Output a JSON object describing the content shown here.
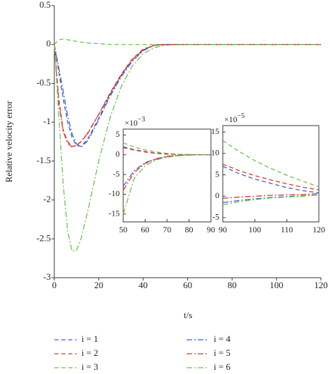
{
  "chart_data": [
    {
      "type": "line",
      "xlabel": "t/s",
      "ylabel": "Relative velocity error",
      "x": [
        0,
        2,
        4,
        6,
        8,
        10,
        12,
        15,
        20,
        25,
        30,
        35,
        40,
        45,
        50,
        60,
        70,
        80,
        100,
        120
      ],
      "xlim": [
        0,
        120
      ],
      "ylim": [
        -3,
        0.5
      ],
      "xticks": [
        0,
        20,
        40,
        60,
        80,
        100,
        120
      ],
      "yticks": [
        0.5,
        0,
        -0.5,
        -1,
        -1.5,
        -2,
        -2.5,
        -3
      ],
      "box": false,
      "legend": "bottom",
      "series": [
        {
          "name": "i = 1",
          "color": "#3b5fc9",
          "dash": "dashed",
          "values": [
            0,
            -0.35,
            -0.7,
            -1.0,
            -1.2,
            -1.3,
            -1.31,
            -1.22,
            -0.95,
            -0.65,
            -0.4,
            -0.2,
            -0.07,
            -0.01,
            0,
            0,
            0,
            0,
            0,
            0
          ]
        },
        {
          "name": "i = 2",
          "color": "#e0302a",
          "dash": "dashed",
          "values": [
            0,
            -0.7,
            -1.1,
            -1.25,
            -1.31,
            -1.3,
            -1.25,
            -1.15,
            -0.9,
            -0.63,
            -0.39,
            -0.19,
            -0.06,
            -0.01,
            0,
            0,
            0,
            0,
            0,
            0
          ]
        },
        {
          "name": "i = 3",
          "color": "#6cc04a",
          "dash": "dashed",
          "values": [
            0,
            0.06,
            0.07,
            0.06,
            0.05,
            0.04,
            0.03,
            0.02,
            0.01,
            0,
            0,
            0,
            0,
            0,
            0,
            0,
            0,
            0,
            0,
            0
          ]
        },
        {
          "name": "i = 4",
          "color": "#3b5fc9",
          "dash": "dashdot",
          "values": [
            0,
            -0.3,
            -0.6,
            -0.92,
            -1.15,
            -1.28,
            -1.32,
            -1.24,
            -0.97,
            -0.67,
            -0.42,
            -0.22,
            -0.08,
            -0.01,
            0,
            0,
            0,
            0,
            0,
            0
          ]
        },
        {
          "name": "i = 5",
          "color": "#e0302a",
          "dash": "dashdot",
          "values": [
            0,
            -0.75,
            -1.12,
            -1.27,
            -1.32,
            -1.3,
            -1.25,
            -1.14,
            -0.9,
            -0.64,
            -0.4,
            -0.2,
            -0.07,
            -0.01,
            0,
            0,
            0,
            0,
            0,
            0
          ]
        },
        {
          "name": "i = 6",
          "color": "#6cc04a",
          "dash": "dashdot",
          "values": [
            0,
            -0.9,
            -1.8,
            -2.4,
            -2.66,
            -2.65,
            -2.5,
            -2.15,
            -1.5,
            -0.95,
            -0.55,
            -0.28,
            -0.12,
            -0.04,
            -0.01,
            0,
            0,
            0,
            0,
            0
          ]
        }
      ]
    },
    {
      "type": "line",
      "multiplier_base": "×10",
      "multiplier_exp": "−3",
      "x": [
        50,
        55,
        60,
        65,
        70,
        75,
        80,
        85,
        90
      ],
      "xlim": [
        50,
        90
      ],
      "ylim": [
        -17,
        6.5
      ],
      "xticks": [
        50,
        60,
        70,
        80,
        90
      ],
      "yticks": [
        5,
        0,
        -5,
        -10,
        -15
      ],
      "box": true,
      "series": [
        {
          "color": "#3b5fc9",
          "dash": "dashed",
          "values": [
            2,
            1.3,
            0.8,
            0.4,
            0.2,
            0.1,
            0,
            0,
            0
          ]
        },
        {
          "color": "#e0302a",
          "dash": "dashed",
          "values": [
            1.8,
            1.2,
            0.7,
            0.35,
            0.15,
            0.05,
            0,
            0,
            0
          ]
        },
        {
          "color": "#6cc04a",
          "dash": "dashed",
          "values": [
            3,
            2,
            1.2,
            0.7,
            0.35,
            0.15,
            0.05,
            0,
            0
          ]
        },
        {
          "color": "#3b5fc9",
          "dash": "dashdot",
          "values": [
            -8,
            -4,
            -2,
            -1,
            -0.4,
            -0.15,
            0,
            0,
            0
          ]
        },
        {
          "color": "#e0302a",
          "dash": "dashdot",
          "values": [
            -9,
            -4.5,
            -2.2,
            -1.1,
            -0.5,
            -0.2,
            -0.05,
            0,
            0
          ]
        },
        {
          "color": "#6cc04a",
          "dash": "dashdot",
          "values": [
            -15,
            -6,
            -2.8,
            -1.3,
            -0.6,
            -0.25,
            -0.1,
            0,
            0
          ]
        }
      ]
    },
    {
      "type": "line",
      "multiplier_base": "×10",
      "multiplier_exp": "−5",
      "x": [
        90,
        95,
        100,
        105,
        110,
        115,
        120
      ],
      "xlim": [
        90,
        120
      ],
      "ylim": [
        -6,
        16.5
      ],
      "xticks": [
        90,
        100,
        110,
        120
      ],
      "yticks": [
        15,
        10,
        5,
        0,
        -5
      ],
      "box": true,
      "series": [
        {
          "color": "#3b5fc9",
          "dash": "dashed",
          "values": [
            7,
            5.3,
            4,
            3,
            2,
            1.3,
            0.8
          ]
        },
        {
          "color": "#e0302a",
          "dash": "dashed",
          "values": [
            7.5,
            6,
            4.8,
            3.8,
            2.9,
            2.1,
            1.5
          ]
        },
        {
          "color": "#6cc04a",
          "dash": "dashed",
          "values": [
            13,
            10.5,
            8.3,
            6.5,
            4.9,
            3.5,
            2.2
          ]
        },
        {
          "color": "#3b5fc9",
          "dash": "dashdot",
          "values": [
            -1.5,
            -1,
            -0.6,
            -0.3,
            -0.1,
            0.1,
            0.3
          ]
        },
        {
          "color": "#e0302a",
          "dash": "dashdot",
          "values": [
            -0.5,
            -0.2,
            0,
            0.2,
            0.3,
            0.4,
            0.6
          ]
        },
        {
          "color": "#6cc04a",
          "dash": "dashdot",
          "values": [
            -2,
            -1.3,
            -0.8,
            -0.4,
            -0.2,
            0,
            0.3
          ]
        }
      ]
    }
  ]
}
